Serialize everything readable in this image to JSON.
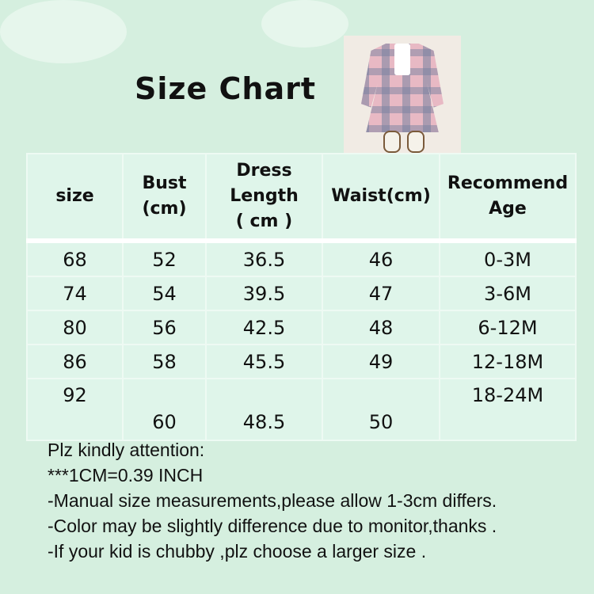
{
  "title": "Size Chart",
  "table": {
    "headers": [
      "size",
      "Bust\n(cm)",
      "Dress\nLength\n( cm )",
      "Waist(cm)",
      "Recommend\nAge"
    ],
    "rows": [
      [
        "68",
        "52",
        "36.5",
        "46",
        "0-3M"
      ],
      [
        "74",
        "54",
        "39.5",
        "47",
        "3-6M"
      ],
      [
        "80",
        "56",
        "42.5",
        "48",
        "6-12M"
      ],
      [
        "86",
        "58",
        "45.5",
        "49",
        "12-18M"
      ],
      [
        "92",
        "60",
        "48.5",
        "50",
        "18-24M"
      ]
    ]
  },
  "notes": [
    "Plz kindly attention:",
    "***1CM=0.39 INCH",
    "-Manual size measurements,please allow 1-3cm differs.",
    "-Color may be slightly difference due to monitor,thanks .",
    "-If your kid is chubby ,plz choose a larger size ."
  ],
  "colors": {
    "background": "#d5efdf",
    "table_bg": "#dff5ea",
    "dress_pink": "#e8b9c4",
    "dress_grey": "#7882a0"
  }
}
